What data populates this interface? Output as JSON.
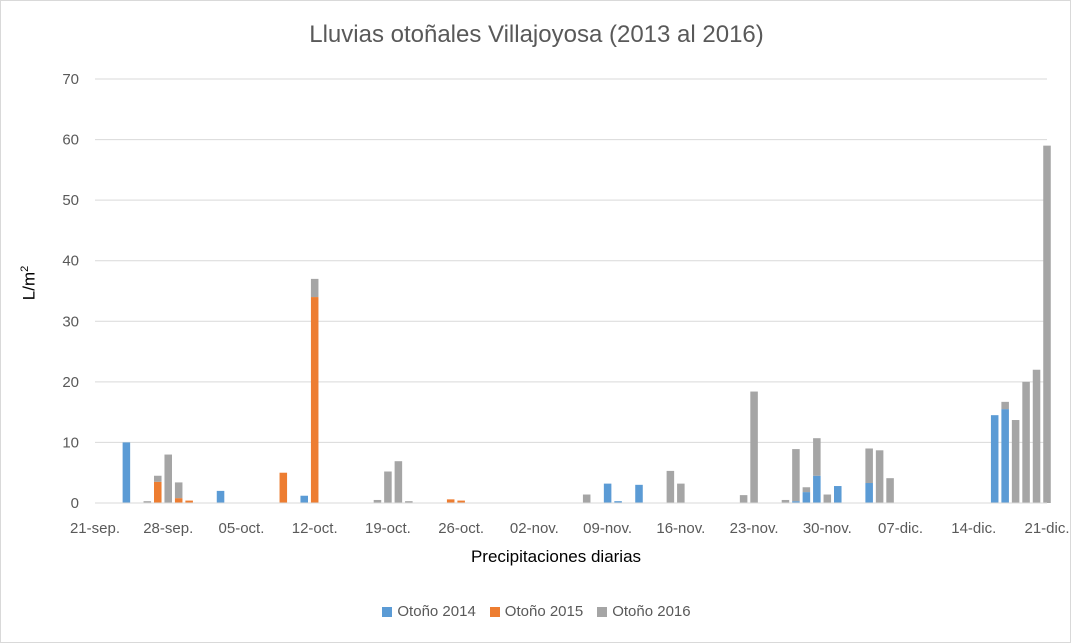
{
  "colors": {
    "otono_2014": "#5b9bd5",
    "otono_2015": "#ed7d31",
    "otono_2016": "#a5a5a5",
    "gridline": "#d9d9d9",
    "axis_text": "#595959"
  },
  "chart_data": {
    "type": "bar",
    "stacked": true,
    "title": "Lluvias otoñales Villajoyosa (2013 al 2016)",
    "xlabel": "Precipitaciones diarias",
    "ylabel": "L/m",
    "ylabel_sup": "2",
    "ylim": [
      0,
      70
    ],
    "yticks": [
      "0",
      "10",
      "20",
      "30",
      "40",
      "50",
      "60",
      "70"
    ],
    "grid": true,
    "legend_position": "bottom",
    "x_range": [
      "2016-09-21",
      "2016-12-21"
    ],
    "xticks": [
      {
        "date": "2016-09-21",
        "label": "21-sep."
      },
      {
        "date": "2016-09-28",
        "label": "28-sep."
      },
      {
        "date": "2016-10-05",
        "label": "05-oct."
      },
      {
        "date": "2016-10-12",
        "label": "12-oct."
      },
      {
        "date": "2016-10-19",
        "label": "19-oct."
      },
      {
        "date": "2016-10-26",
        "label": "26-oct."
      },
      {
        "date": "2016-11-02",
        "label": "02-nov."
      },
      {
        "date": "2016-11-09",
        "label": "09-nov."
      },
      {
        "date": "2016-11-16",
        "label": "16-nov."
      },
      {
        "date": "2016-11-23",
        "label": "23-nov."
      },
      {
        "date": "2016-11-30",
        "label": "30-nov."
      },
      {
        "date": "2016-12-07",
        "label": "07-dic."
      },
      {
        "date": "2016-12-14",
        "label": "14-dic."
      },
      {
        "date": "2016-12-21",
        "label": "21-dic."
      }
    ],
    "series": [
      {
        "name": "Otoño 2014",
        "key": "otono_2014",
        "points": [
          {
            "date": "2016-09-24",
            "value": 10
          },
          {
            "date": "2016-10-03",
            "value": 2
          },
          {
            "date": "2016-10-11",
            "value": 1.2
          },
          {
            "date": "2016-11-09",
            "value": 3.2
          },
          {
            "date": "2016-11-10",
            "value": 0.3
          },
          {
            "date": "2016-11-12",
            "value": 3
          },
          {
            "date": "2016-11-27",
            "value": 0.3
          },
          {
            "date": "2016-11-28",
            "value": 1.8
          },
          {
            "date": "2016-11-29",
            "value": 4.5
          },
          {
            "date": "2016-12-01",
            "value": 2.8
          },
          {
            "date": "2016-12-04",
            "value": 3.3
          },
          {
            "date": "2016-12-16",
            "value": 14.5
          },
          {
            "date": "2016-12-17",
            "value": 15.5
          }
        ]
      },
      {
        "name": "Otoño 2015",
        "key": "otono_2015",
        "points": [
          {
            "date": "2016-09-27",
            "value": 3.5
          },
          {
            "date": "2016-09-29",
            "value": 0.8
          },
          {
            "date": "2016-09-30",
            "value": 0.4
          },
          {
            "date": "2016-10-09",
            "value": 5
          },
          {
            "date": "2016-10-12",
            "value": 34
          },
          {
            "date": "2016-10-25",
            "value": 0.6
          },
          {
            "date": "2016-10-26",
            "value": 0.4
          }
        ]
      },
      {
        "name": "Otoño 2016",
        "key": "otono_2016",
        "points": [
          {
            "date": "2016-09-26",
            "value": 0.3
          },
          {
            "date": "2016-09-27",
            "value": 1
          },
          {
            "date": "2016-09-28",
            "value": 8
          },
          {
            "date": "2016-09-29",
            "value": 2.6
          },
          {
            "date": "2016-10-18",
            "value": 0.5
          },
          {
            "date": "2016-10-19",
            "value": 5.2
          },
          {
            "date": "2016-10-20",
            "value": 6.9
          },
          {
            "date": "2016-10-21",
            "value": 0.3
          },
          {
            "date": "2016-10-12",
            "value": 3
          },
          {
            "date": "2016-11-07",
            "value": 1.4
          },
          {
            "date": "2016-11-15",
            "value": 5.3
          },
          {
            "date": "2016-11-16",
            "value": 3.2
          },
          {
            "date": "2016-11-22",
            "value": 1.3
          },
          {
            "date": "2016-11-23",
            "value": 18.4
          },
          {
            "date": "2016-11-26",
            "value": 0.5
          },
          {
            "date": "2016-11-27",
            "value": 8.6
          },
          {
            "date": "2016-11-28",
            "value": 0.8
          },
          {
            "date": "2016-11-29",
            "value": 6.2
          },
          {
            "date": "2016-11-30",
            "value": 1.4
          },
          {
            "date": "2016-12-04",
            "value": 5.7
          },
          {
            "date": "2016-12-05",
            "value": 8.7
          },
          {
            "date": "2016-12-06",
            "value": 4.1
          },
          {
            "date": "2016-12-17",
            "value": 1.2
          },
          {
            "date": "2016-12-18",
            "value": 13.7
          },
          {
            "date": "2016-12-19",
            "value": 20
          },
          {
            "date": "2016-12-20",
            "value": 22
          },
          {
            "date": "2016-12-21",
            "value": 59
          }
        ]
      }
    ]
  }
}
